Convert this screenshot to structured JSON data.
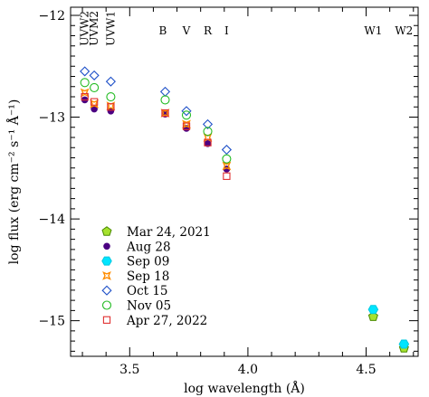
{
  "chart_data": {
    "type": "scatter",
    "xlabel": "log wavelength (Å)",
    "ylabel": "log flux (erg cm⁻² s⁻¹ Å⁻¹)",
    "xlim": [
      3.25,
      4.72
    ],
    "ylim": [
      -15.35,
      -11.92
    ],
    "x_ticks": [
      {
        "value": 3.5,
        "label": "3.5"
      },
      {
        "value": 4.0,
        "label": "4.0"
      },
      {
        "value": 4.5,
        "label": "4.5"
      }
    ],
    "y_ticks": [
      {
        "value": -12,
        "label": "−12"
      },
      {
        "value": -13,
        "label": "−13"
      },
      {
        "value": -14,
        "label": "−14"
      },
      {
        "value": -15,
        "label": "−15"
      }
    ],
    "band_labels": [
      {
        "label": "UVW2",
        "x": 3.31,
        "vertical": true
      },
      {
        "label": "UVM2",
        "x": 3.35,
        "vertical": true
      },
      {
        "label": "UVW1",
        "x": 3.42,
        "vertical": true
      },
      {
        "label": "B",
        "x": 3.64,
        "vertical": false
      },
      {
        "label": "V",
        "x": 3.74,
        "vertical": false
      },
      {
        "label": "R",
        "x": 3.83,
        "vertical": false
      },
      {
        "label": "I",
        "x": 3.91,
        "vertical": false
      },
      {
        "label": "W1",
        "x": 4.53,
        "vertical": false
      },
      {
        "label": "W2",
        "x": 4.66,
        "vertical": false
      }
    ],
    "legend_position": "lower-left",
    "series": [
      {
        "name": "Mar 24, 2021",
        "marker": "pentagon",
        "fill": "#a6e22e",
        "stroke": "#4a8a00",
        "points": [
          [
            4.53,
            -14.96
          ],
          [
            4.66,
            -15.27
          ]
        ]
      },
      {
        "name": "Aug 28",
        "marker": "circle",
        "fill": "#4b0082",
        "stroke": "#4b0082",
        "points": [
          [
            3.31,
            -12.83
          ],
          [
            3.35,
            -12.92
          ],
          [
            3.42,
            -12.94
          ],
          [
            3.65,
            -12.97
          ],
          [
            3.74,
            -13.11
          ],
          [
            3.83,
            -13.26
          ],
          [
            3.91,
            -13.51
          ]
        ]
      },
      {
        "name": "Sep 09",
        "marker": "hexagon",
        "fill": "#00e5ff",
        "stroke": "#00c8e0",
        "points": [
          [
            4.53,
            -14.89
          ],
          [
            4.66,
            -15.23
          ]
        ]
      },
      {
        "name": "Sep 18",
        "marker": "star",
        "fill": "#ffb000",
        "stroke": "#ff8c00",
        "points": [
          [
            3.31,
            -12.76
          ],
          [
            3.35,
            -12.87
          ],
          [
            3.42,
            -12.89
          ],
          [
            3.65,
            -12.96
          ],
          [
            3.74,
            -13.07
          ],
          [
            3.83,
            -13.2
          ],
          [
            3.91,
            -13.48
          ]
        ]
      },
      {
        "name": "Oct 15",
        "marker": "diamond",
        "fill": "none",
        "stroke": "#1e50c8",
        "points": [
          [
            3.31,
            -12.55
          ],
          [
            3.35,
            -12.59
          ],
          [
            3.42,
            -12.65
          ],
          [
            3.65,
            -12.75
          ],
          [
            3.74,
            -12.94
          ],
          [
            3.83,
            -13.07
          ],
          [
            3.91,
            -13.32
          ]
        ]
      },
      {
        "name": "Nov 05",
        "marker": "circle-open",
        "fill": "none",
        "stroke": "#22bb22",
        "points": [
          [
            3.31,
            -12.66
          ],
          [
            3.35,
            -12.71
          ],
          [
            3.42,
            -12.8
          ],
          [
            3.65,
            -12.83
          ],
          [
            3.74,
            -12.98
          ],
          [
            3.83,
            -13.14
          ],
          [
            3.91,
            -13.41
          ]
        ]
      },
      {
        "name": "Apr 27, 2022",
        "marker": "square-open",
        "fill": "none",
        "stroke": "#e03030",
        "points": [
          [
            3.31,
            -12.8
          ],
          [
            3.35,
            -12.85
          ],
          [
            3.42,
            -12.9
          ],
          [
            3.65,
            -12.96
          ],
          [
            3.74,
            -13.09
          ],
          [
            3.83,
            -13.25
          ],
          [
            3.91,
            -13.58
          ]
        ]
      }
    ]
  }
}
